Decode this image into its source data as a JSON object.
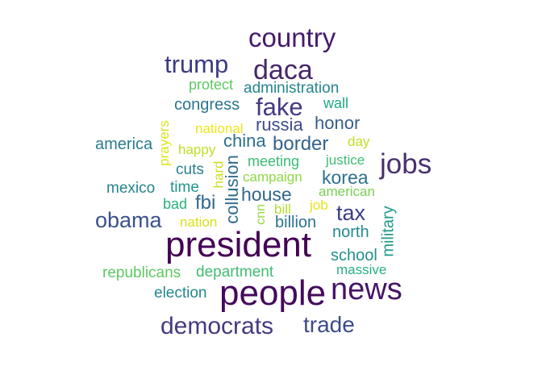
{
  "words": [
    {
      "text": "president",
      "color": "#440154"
    },
    {
      "text": "people",
      "color": "#450a5c"
    },
    {
      "text": "news",
      "color": "#46136a"
    },
    {
      "text": "country",
      "color": "#461a6e"
    },
    {
      "text": "jobs",
      "color": "#47306f"
    },
    {
      "text": "daca",
      "color": "#46286a"
    },
    {
      "text": "democrats",
      "color": "#433a80"
    },
    {
      "text": "trade",
      "color": "#3e4b88"
    },
    {
      "text": "trump",
      "color": "#3a3b83"
    },
    {
      "text": "fake",
      "color": "#443983"
    },
    {
      "text": "obama",
      "color": "#3a518b"
    },
    {
      "text": "tax",
      "color": "#3b3e85"
    },
    {
      "text": "border",
      "color": "#33638d"
    },
    {
      "text": "russia",
      "color": "#3e4d89"
    },
    {
      "text": "honor",
      "color": "#355f8d"
    },
    {
      "text": "house",
      "color": "#31668e"
    },
    {
      "text": "korea",
      "color": "#2c728e"
    },
    {
      "text": "fbi",
      "color": "#31688e"
    },
    {
      "text": "china",
      "color": "#2d6f8e"
    },
    {
      "text": "collusion",
      "color": "#2f6b8e"
    },
    {
      "text": "congress",
      "color": "#2b758e"
    },
    {
      "text": "america",
      "color": "#287c8e"
    },
    {
      "text": "mexico",
      "color": "#25858e"
    },
    {
      "text": "billion",
      "color": "#2c738e"
    },
    {
      "text": "north",
      "color": "#238a8d"
    },
    {
      "text": "school",
      "color": "#21918c"
    },
    {
      "text": "military",
      "color": "#1f9a8a"
    },
    {
      "text": "administration",
      "color": "#24868e"
    },
    {
      "text": "election",
      "color": "#23888e"
    },
    {
      "text": "time",
      "color": "#1f968b"
    },
    {
      "text": "cuts",
      "color": "#26828e"
    },
    {
      "text": "wall",
      "color": "#22a884"
    },
    {
      "text": "massive",
      "color": "#29af7f"
    },
    {
      "text": "bad",
      "color": "#2ab07f"
    },
    {
      "text": "department",
      "color": "#40bd72"
    },
    {
      "text": "meeting",
      "color": "#3bbb75"
    },
    {
      "text": "justice",
      "color": "#3fbc73"
    },
    {
      "text": "republicans",
      "color": "#5ec962"
    },
    {
      "text": "protect",
      "color": "#5ec962"
    },
    {
      "text": "american",
      "color": "#7ad151"
    },
    {
      "text": "campaign",
      "color": "#8fd744"
    },
    {
      "text": "cnn",
      "color": "#95d840"
    },
    {
      "text": "bill",
      "color": "#b5de2b"
    },
    {
      "text": "happy",
      "color": "#bddf26"
    },
    {
      "text": "day",
      "color": "#c2df23"
    },
    {
      "text": "hard",
      "color": "#cae11f"
    },
    {
      "text": "nation",
      "color": "#d8e219"
    },
    {
      "text": "prayers",
      "color": "#dde318"
    },
    {
      "text": "job",
      "color": "#e5e419"
    },
    {
      "text": "national",
      "color": "#f1e51d"
    }
  ]
}
